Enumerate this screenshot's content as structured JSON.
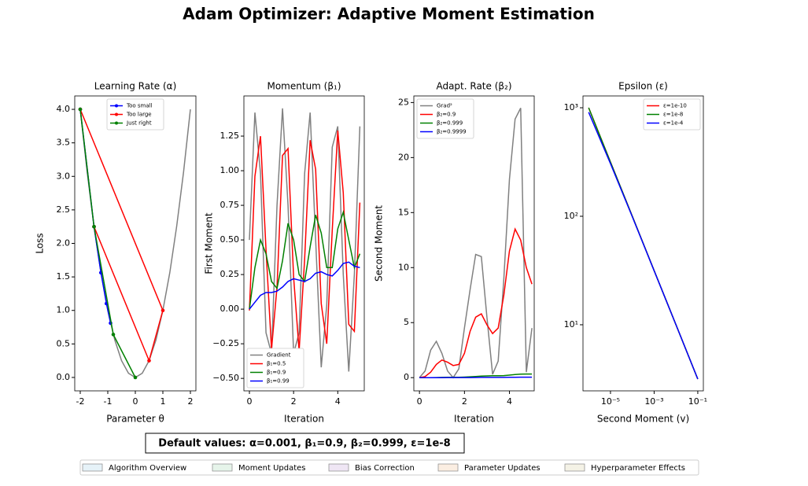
{
  "title": "Adam Optimizer: Adaptive Moment Estimation",
  "note": "Default values: α=0.001, β₁=0.9, β₂=0.999, ε=1e-8",
  "sections": [
    {
      "name": "Algorithm Overview",
      "color": "#e6f2f8"
    },
    {
      "name": "Moment Updates",
      "color": "#e6f4ea"
    },
    {
      "name": "Bias Correction",
      "color": "#efe6f4"
    },
    {
      "name": "Parameter Updates",
      "color": "#fbeee2"
    },
    {
      "name": "Hyperparameter Effects",
      "color": "#f4f2e6"
    }
  ],
  "chart_data": [
    {
      "type": "line",
      "title": "Learning Rate (α)",
      "x_label": "Parameter θ",
      "y_label": "Loss",
      "xlim": [
        -2.2,
        2.2
      ],
      "xticks": [
        -2,
        -1,
        0,
        1,
        2
      ],
      "ylim": [
        -0.2,
        4.2
      ],
      "yticks": [
        {
          "value": 0,
          "label": "0.0"
        },
        {
          "value": 0.5,
          "label": "0.5"
        },
        {
          "value": 1,
          "label": "1.0"
        },
        {
          "value": 1.5,
          "label": "1.5"
        },
        {
          "value": 2,
          "label": "2.0"
        },
        {
          "value": 2.5,
          "label": "2.5"
        },
        {
          "value": 3,
          "label": "3.0"
        },
        {
          "value": 3.5,
          "label": "3.5"
        },
        {
          "value": 4,
          "label": "4.0"
        }
      ],
      "legend": "upper center",
      "reference_curve": {
        "color": "#808080",
        "x": [
          -2,
          -1.75,
          -1.5,
          -1.25,
          -1,
          -0.75,
          -0.5,
          -0.25,
          0,
          0.25,
          0.5,
          0.75,
          1,
          1.25,
          1.5,
          1.75,
          2
        ],
        "values": [
          4,
          3.0625,
          2.25,
          1.5625,
          1,
          0.5625,
          0.25,
          0.0625,
          0,
          0.0625,
          0.25,
          0.5625,
          1,
          1.5625,
          2.25,
          3.0625,
          4
        ]
      },
      "series": [
        {
          "name": "Too small",
          "color": "#0000ff",
          "marker": "o",
          "x": [
            -2,
            -1.5,
            -1.25,
            -1.05,
            -0.9
          ],
          "values": [
            4,
            2.25,
            1.5625,
            1.1025,
            0.81
          ]
        },
        {
          "name": "Too large",
          "color": "#ff0000",
          "marker": "o",
          "x": [
            -2,
            1,
            0.5,
            -1.5
          ],
          "values": [
            4,
            1,
            0.25,
            2.25
          ]
        },
        {
          "name": "Just right",
          "color": "#008000",
          "marker": "o",
          "x": [
            -2,
            -1.5,
            -0.8,
            0
          ],
          "values": [
            4,
            2.25,
            0.64,
            0
          ]
        }
      ]
    },
    {
      "type": "line",
      "title": "Momentum (β₁)",
      "x_label": "Iteration",
      "y_label": "First Moment",
      "x": [
        0,
        0.25,
        0.5,
        0.75,
        1,
        1.25,
        1.5,
        1.75,
        2,
        2.25,
        2.5,
        2.75,
        3,
        3.25,
        3.5,
        3.75,
        4,
        4.25,
        4.5,
        4.75,
        5
      ],
      "xlim": [
        -0.25,
        5.2
      ],
      "xticks": [
        0,
        2,
        4
      ],
      "ylim": [
        -0.59,
        1.54
      ],
      "yticks": [
        {
          "value": -0.5,
          "label": "−0.50"
        },
        {
          "value": -0.25,
          "label": "−0.25"
        },
        {
          "value": 0,
          "label": "0.00"
        },
        {
          "value": 0.25,
          "label": "0.25"
        },
        {
          "value": 0.5,
          "label": "0.50"
        },
        {
          "value": 0.75,
          "label": "0.75"
        },
        {
          "value": 1,
          "label": "1.00"
        },
        {
          "value": 1.25,
          "label": "1.25"
        }
      ],
      "legend": "lower left",
      "series": [
        {
          "name": "Gradient",
          "color": "#808080",
          "values": [
            0.5,
            1.42,
            0.98,
            -0.17,
            -0.32,
            0.75,
            1.45,
            0.75,
            -0.32,
            -0.17,
            0.98,
            1.42,
            0.5,
            -0.42,
            0.03,
            1.17,
            1.32,
            0.25,
            -0.45,
            0.25,
            1.32
          ]
        },
        {
          "name": "β₁=0.5",
          "color": "#ff0000",
          "values": [
            -0.01,
            0.96,
            1.25,
            0.43,
            -0.29,
            0.16,
            1.11,
            1.16,
            0.23,
            -0.3,
            0.36,
            1.22,
            1.01,
            0.04,
            -0.25,
            0.57,
            1.29,
            0.84,
            -0.11,
            -0.16,
            0.77
          ]
        },
        {
          "name": "β₁=0.9",
          "color": "#008000",
          "values": [
            0,
            0.3,
            0.5,
            0.4,
            0.2,
            0.15,
            0.35,
            0.62,
            0.5,
            0.25,
            0.2,
            0.45,
            0.68,
            0.55,
            0.3,
            0.3,
            0.58,
            0.7,
            0.5,
            0.3,
            0.4
          ]
        },
        {
          "name": "β₁=0.99",
          "color": "#0000ff",
          "values": [
            0,
            0.05,
            0.1,
            0.12,
            0.12,
            0.13,
            0.16,
            0.2,
            0.22,
            0.21,
            0.2,
            0.22,
            0.26,
            0.27,
            0.25,
            0.24,
            0.28,
            0.33,
            0.34,
            0.31,
            0.3
          ]
        }
      ]
    },
    {
      "type": "line",
      "title": "Adapt. Rate (β₂)",
      "x_label": "Iteration",
      "y_label": "Second Moment",
      "x": [
        0,
        0.25,
        0.5,
        0.75,
        1,
        1.25,
        1.5,
        1.75,
        2,
        2.25,
        2.5,
        2.75,
        3,
        3.25,
        3.5,
        3.75,
        4,
        4.25,
        4.5,
        4.75,
        5
      ],
      "xlim": [
        -0.25,
        5.1
      ],
      "xticks": [
        0,
        2,
        4
      ],
      "ylim": [
        -1.2,
        25.6
      ],
      "yticks": [
        0,
        5,
        10,
        15,
        20,
        25
      ],
      "legend": "upper left",
      "series": [
        {
          "name": "Grad²",
          "color": "#808080",
          "values": [
            0,
            0.6,
            2.5,
            3.3,
            2.2,
            0.6,
            0,
            0.8,
            4.5,
            8,
            11.2,
            11,
            5.5,
            0.3,
            1.5,
            9,
            18,
            23.5,
            24.5,
            0.5,
            4.5
          ]
        },
        {
          "name": "β₂=0.9",
          "color": "#ff0000",
          "values": [
            0,
            0.1,
            0.5,
            1.2,
            1.6,
            1.4,
            1.1,
            1.2,
            2.2,
            4.2,
            5.5,
            5.8,
            4.8,
            4,
            4.5,
            7.5,
            11.5,
            13.5,
            12.5,
            10,
            8.5
          ]
        },
        {
          "name": "β₂=0.999",
          "color": "#008000",
          "values": [
            0,
            0,
            0,
            0.01,
            0.02,
            0.03,
            0.03,
            0.03,
            0.05,
            0.08,
            0.11,
            0.14,
            0.16,
            0.17,
            0.17,
            0.19,
            0.23,
            0.28,
            0.32,
            0.33,
            0.33
          ]
        },
        {
          "name": "β₂=0.9999",
          "color": "#0000ff",
          "values": [
            0,
            0,
            0,
            0,
            0,
            0.005,
            0.005,
            0.005,
            0.01,
            0.01,
            0.015,
            0.02,
            0.02,
            0.02,
            0.02,
            0.025,
            0.03,
            0.035,
            0.04,
            0.04,
            0.04
          ]
        }
      ]
    },
    {
      "type": "line",
      "title": "Epsilon (ε)",
      "x_label": "Second Moment (v)",
      "xscale": "log",
      "yscale": "log",
      "x": [
        1e-06,
        1e-05,
        0.0001,
        0.001,
        0.01,
        0.1
      ],
      "xlim": [
        5.5e-07,
        0.18
      ],
      "xticks": [
        {
          "value": 1e-05,
          "label": "10⁻⁵"
        },
        {
          "value": 0.001,
          "label": "10⁻³"
        },
        {
          "value": 0.1,
          "label": "10⁻¹"
        }
      ],
      "ylim": [
        2.46,
        1285
      ],
      "yticks": [
        {
          "value": 10,
          "label": "10¹"
        },
        {
          "value": 100,
          "label": "10²"
        },
        {
          "value": 1000,
          "label": "10³"
        }
      ],
      "legend": "upper right",
      "series": [
        {
          "name": "ε=1e-10",
          "color": "#ff0000",
          "values": [
            1000,
            316.2,
            100,
            31.62,
            10,
            3.162
          ]
        },
        {
          "name": "ε=1e-8",
          "color": "#008000",
          "values": [
            1000,
            316.2,
            100,
            31.62,
            10,
            3.162
          ]
        },
        {
          "name": "ε=1e-4",
          "color": "#0000ff",
          "values": [
            909.1,
            306.5,
            99,
            31.52,
            9.99,
            3.161
          ]
        }
      ]
    }
  ]
}
